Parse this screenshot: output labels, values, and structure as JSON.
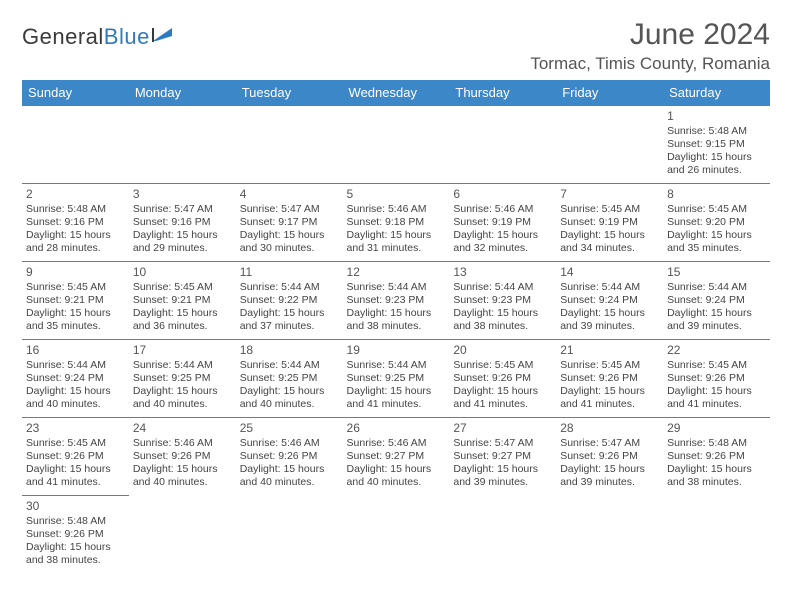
{
  "logo": {
    "part1": "General",
    "part2": "Blue"
  },
  "colors": {
    "header_bg": "#3b87c8",
    "header_text": "#ffffff",
    "border": "#3b87c8",
    "text": "#444444",
    "title": "#555555",
    "logo_dark": "#3a3a3a",
    "logo_blue": "#2f7bbf"
  },
  "title": "June 2024",
  "location": "Tormac, Timis County, Romania",
  "weekdays": [
    "Sunday",
    "Monday",
    "Tuesday",
    "Wednesday",
    "Thursday",
    "Friday",
    "Saturday"
  ],
  "grid": [
    [
      null,
      null,
      null,
      null,
      null,
      null,
      {
        "d": "1",
        "sr": "5:48 AM",
        "ss": "9:15 PM",
        "dl1": "15 hours",
        "dl2": "and 26 minutes."
      }
    ],
    [
      {
        "d": "2",
        "sr": "5:48 AM",
        "ss": "9:16 PM",
        "dl1": "15 hours",
        "dl2": "and 28 minutes."
      },
      {
        "d": "3",
        "sr": "5:47 AM",
        "ss": "9:16 PM",
        "dl1": "15 hours",
        "dl2": "and 29 minutes."
      },
      {
        "d": "4",
        "sr": "5:47 AM",
        "ss": "9:17 PM",
        "dl1": "15 hours",
        "dl2": "and 30 minutes."
      },
      {
        "d": "5",
        "sr": "5:46 AM",
        "ss": "9:18 PM",
        "dl1": "15 hours",
        "dl2": "and 31 minutes."
      },
      {
        "d": "6",
        "sr": "5:46 AM",
        "ss": "9:19 PM",
        "dl1": "15 hours",
        "dl2": "and 32 minutes."
      },
      {
        "d": "7",
        "sr": "5:45 AM",
        "ss": "9:19 PM",
        "dl1": "15 hours",
        "dl2": "and 34 minutes."
      },
      {
        "d": "8",
        "sr": "5:45 AM",
        "ss": "9:20 PM",
        "dl1": "15 hours",
        "dl2": "and 35 minutes."
      }
    ],
    [
      {
        "d": "9",
        "sr": "5:45 AM",
        "ss": "9:21 PM",
        "dl1": "15 hours",
        "dl2": "and 35 minutes."
      },
      {
        "d": "10",
        "sr": "5:45 AM",
        "ss": "9:21 PM",
        "dl1": "15 hours",
        "dl2": "and 36 minutes."
      },
      {
        "d": "11",
        "sr": "5:44 AM",
        "ss": "9:22 PM",
        "dl1": "15 hours",
        "dl2": "and 37 minutes."
      },
      {
        "d": "12",
        "sr": "5:44 AM",
        "ss": "9:23 PM",
        "dl1": "15 hours",
        "dl2": "and 38 minutes."
      },
      {
        "d": "13",
        "sr": "5:44 AM",
        "ss": "9:23 PM",
        "dl1": "15 hours",
        "dl2": "and 38 minutes."
      },
      {
        "d": "14",
        "sr": "5:44 AM",
        "ss": "9:24 PM",
        "dl1": "15 hours",
        "dl2": "and 39 minutes."
      },
      {
        "d": "15",
        "sr": "5:44 AM",
        "ss": "9:24 PM",
        "dl1": "15 hours",
        "dl2": "and 39 minutes."
      }
    ],
    [
      {
        "d": "16",
        "sr": "5:44 AM",
        "ss": "9:24 PM",
        "dl1": "15 hours",
        "dl2": "and 40 minutes."
      },
      {
        "d": "17",
        "sr": "5:44 AM",
        "ss": "9:25 PM",
        "dl1": "15 hours",
        "dl2": "and 40 minutes."
      },
      {
        "d": "18",
        "sr": "5:44 AM",
        "ss": "9:25 PM",
        "dl1": "15 hours",
        "dl2": "and 40 minutes."
      },
      {
        "d": "19",
        "sr": "5:44 AM",
        "ss": "9:25 PM",
        "dl1": "15 hours",
        "dl2": "and 41 minutes."
      },
      {
        "d": "20",
        "sr": "5:45 AM",
        "ss": "9:26 PM",
        "dl1": "15 hours",
        "dl2": "and 41 minutes."
      },
      {
        "d": "21",
        "sr": "5:45 AM",
        "ss": "9:26 PM",
        "dl1": "15 hours",
        "dl2": "and 41 minutes."
      },
      {
        "d": "22",
        "sr": "5:45 AM",
        "ss": "9:26 PM",
        "dl1": "15 hours",
        "dl2": "and 41 minutes."
      }
    ],
    [
      {
        "d": "23",
        "sr": "5:45 AM",
        "ss": "9:26 PM",
        "dl1": "15 hours",
        "dl2": "and 41 minutes."
      },
      {
        "d": "24",
        "sr": "5:46 AM",
        "ss": "9:26 PM",
        "dl1": "15 hours",
        "dl2": "and 40 minutes."
      },
      {
        "d": "25",
        "sr": "5:46 AM",
        "ss": "9:26 PM",
        "dl1": "15 hours",
        "dl2": "and 40 minutes."
      },
      {
        "d": "26",
        "sr": "5:46 AM",
        "ss": "9:27 PM",
        "dl1": "15 hours",
        "dl2": "and 40 minutes."
      },
      {
        "d": "27",
        "sr": "5:47 AM",
        "ss": "9:27 PM",
        "dl1": "15 hours",
        "dl2": "and 39 minutes."
      },
      {
        "d": "28",
        "sr": "5:47 AM",
        "ss": "9:26 PM",
        "dl1": "15 hours",
        "dl2": "and 39 minutes."
      },
      {
        "d": "29",
        "sr": "5:48 AM",
        "ss": "9:26 PM",
        "dl1": "15 hours",
        "dl2": "and 38 minutes."
      }
    ],
    [
      {
        "d": "30",
        "sr": "5:48 AM",
        "ss": "9:26 PM",
        "dl1": "15 hours",
        "dl2": "and 38 minutes."
      },
      null,
      null,
      null,
      null,
      null,
      null
    ]
  ],
  "labels": {
    "sunrise": "Sunrise: ",
    "sunset": "Sunset: ",
    "daylight": "Daylight: "
  }
}
